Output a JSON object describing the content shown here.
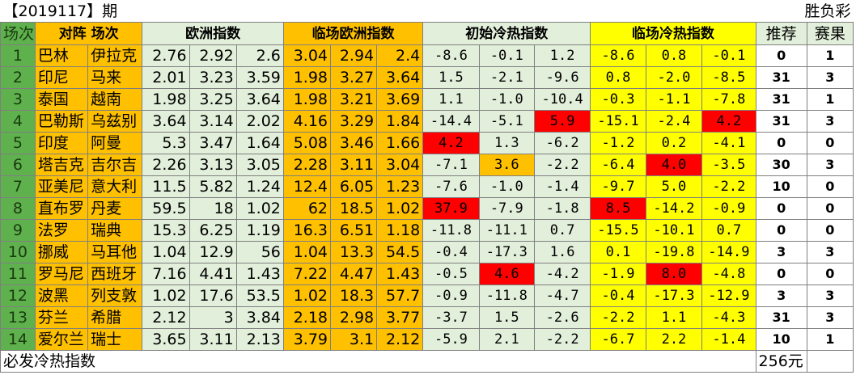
{
  "period": "【2019117】期",
  "game_type": "胜负彩",
  "headers": {
    "no": "场次",
    "match": "对阵 场次",
    "euro": "欧洲指数",
    "live_euro": "临场欧洲指数",
    "init_heat": "初始冷热指数",
    "live_heat": "临场冷热指数",
    "recommend": "推荐",
    "result": "赛果"
  },
  "rows": [
    {
      "no": "1",
      "home": "巴林",
      "away": "伊拉克",
      "euro": [
        "2.76",
        "2.92",
        "2.6"
      ],
      "live": [
        "3.04",
        "2.94",
        "2.4"
      ],
      "init": [
        "-8.6",
        "-0.1",
        "1.2"
      ],
      "lheat": [
        "-8.6",
        "0.8",
        "-0.1"
      ],
      "rec": "0",
      "res": "1",
      "hl": {}
    },
    {
      "no": "2",
      "home": "印尼",
      "away": "马来",
      "euro": [
        "2.01",
        "3.23",
        "3.59"
      ],
      "live": [
        "1.98",
        "3.27",
        "3.64"
      ],
      "init": [
        "1.5",
        "-2.1",
        "-9.6"
      ],
      "lheat": [
        "0.8",
        "-2.0",
        "-8.5"
      ],
      "rec": "31",
      "res": "3",
      "hl": {}
    },
    {
      "no": "3",
      "home": "泰国",
      "away": "越南",
      "euro": [
        "1.98",
        "3.25",
        "3.64"
      ],
      "live": [
        "1.98",
        "3.21",
        "3.69"
      ],
      "init": [
        "1.1",
        "-1.0",
        "-10.4"
      ],
      "lheat": [
        "-0.3",
        "-1.1",
        "-7.8"
      ],
      "rec": "31",
      "res": "1",
      "hl": {}
    },
    {
      "no": "4",
      "home": "巴勒斯",
      "away": "乌兹别",
      "euro": [
        "3.64",
        "3.14",
        "2.02"
      ],
      "live": [
        "4.16",
        "3.29",
        "1.84"
      ],
      "init": [
        "-14.4",
        "-5.1",
        "5.9"
      ],
      "lheat": [
        "-15.1",
        "-2.4",
        "4.2"
      ],
      "rec": "31",
      "res": "3",
      "hl": {
        "init": {
          "2": "red"
        },
        "lheat": {
          "2": "red"
        }
      }
    },
    {
      "no": "5",
      "home": "印度",
      "away": "阿曼",
      "euro": [
        "5.3",
        "3.47",
        "1.64"
      ],
      "live": [
        "5.08",
        "3.46",
        "1.66"
      ],
      "init": [
        "4.2",
        "1.3",
        "-6.2"
      ],
      "lheat": [
        "-1.2",
        "0.2",
        "-4.1"
      ],
      "rec": "0",
      "res": "0",
      "hl": {
        "init": {
          "0": "red"
        }
      }
    },
    {
      "no": "6",
      "home": "塔吉克",
      "away": "吉尔吉",
      "euro": [
        "2.26",
        "3.13",
        "3.05"
      ],
      "live": [
        "2.28",
        "3.11",
        "3.04"
      ],
      "init": [
        "-7.1",
        "3.6",
        "-2.2"
      ],
      "lheat": [
        "-6.4",
        "4.0",
        "-3.5"
      ],
      "rec": "30",
      "res": "3",
      "hl": {
        "init": {
          "1": "orange"
        },
        "lheat": {
          "1": "red"
        }
      }
    },
    {
      "no": "7",
      "home": "亚美尼",
      "away": "意大利",
      "euro": [
        "11.5",
        "5.82",
        "1.24"
      ],
      "live": [
        "12.4",
        "6.05",
        "1.23"
      ],
      "init": [
        "-7.6",
        "-1.0",
        "-1.4"
      ],
      "lheat": [
        "-9.7",
        "5.0",
        "-2.2"
      ],
      "rec": "10",
      "res": "0",
      "hl": {}
    },
    {
      "no": "8",
      "home": "直布罗",
      "away": "丹麦",
      "euro": [
        "59.5",
        "18",
        "1.02"
      ],
      "live": [
        "62",
        "18.5",
        "1.02"
      ],
      "init": [
        "37.9",
        "-7.9",
        "-1.8"
      ],
      "lheat": [
        "8.5",
        "-14.2",
        "-0.9"
      ],
      "rec": "0",
      "res": "0",
      "hl": {
        "init": {
          "0": "red"
        },
        "lheat": {
          "0": "red"
        }
      }
    },
    {
      "no": "9",
      "home": "法罗",
      "away": "瑞典",
      "euro": [
        "15.3",
        "6.25",
        "1.19"
      ],
      "live": [
        "16.3",
        "6.51",
        "1.18"
      ],
      "init": [
        "-11.8",
        "-11.1",
        "0.7"
      ],
      "lheat": [
        "-15.5",
        "-10.1",
        "0.7"
      ],
      "rec": "0",
      "res": "0",
      "hl": {}
    },
    {
      "no": "10",
      "home": "挪威",
      "away": "马耳他",
      "euro": [
        "1.04",
        "12.9",
        "56"
      ],
      "live": [
        "1.04",
        "13.3",
        "54.5"
      ],
      "init": [
        "-0.4",
        "-17.3",
        "1.6"
      ],
      "lheat": [
        "0.1",
        "-19.8",
        "-14.9"
      ],
      "rec": "3",
      "res": "3",
      "hl": {}
    },
    {
      "no": "11",
      "home": "罗马尼",
      "away": "西班牙",
      "euro": [
        "7.16",
        "4.41",
        "1.43"
      ],
      "live": [
        "7.22",
        "4.47",
        "1.43"
      ],
      "init": [
        "-0.5",
        "4.6",
        "-4.2"
      ],
      "lheat": [
        "-1.9",
        "8.0",
        "-4.8"
      ],
      "rec": "0",
      "res": "0",
      "hl": {
        "init": {
          "1": "red"
        },
        "lheat": {
          "1": "red"
        }
      }
    },
    {
      "no": "12",
      "home": "波黑",
      "away": "列支敦",
      "euro": [
        "1.02",
        "17.6",
        "53.5"
      ],
      "live": [
        "1.02",
        "18.3",
        "57.7"
      ],
      "init": [
        "-0.9",
        "-11.8",
        "-4.7"
      ],
      "lheat": [
        "-0.4",
        "-17.3",
        "-12.9"
      ],
      "rec": "3",
      "res": "3",
      "hl": {}
    },
    {
      "no": "13",
      "home": "芬兰",
      "away": "希腊",
      "euro": [
        "2.12",
        "3",
        "3.84"
      ],
      "live": [
        "2.18",
        "2.98",
        "3.77"
      ],
      "init": [
        "-3.7",
        "1.5",
        "-2.6"
      ],
      "lheat": [
        "-2.2",
        "1.1",
        "-4.3"
      ],
      "rec": "31",
      "res": "3",
      "hl": {}
    },
    {
      "no": "14",
      "home": "爱尔兰",
      "away": "瑞士",
      "euro": [
        "3.65",
        "3.11",
        "2.13"
      ],
      "live": [
        "3.79",
        "3.1",
        "2.12"
      ],
      "init": [
        "-5.9",
        "2.1",
        "-2.2"
      ],
      "lheat": [
        "-6.7",
        "2.2",
        "-1.4"
      ],
      "rec": "10",
      "res": "1",
      "hl": {}
    }
  ],
  "footer": {
    "label": "必发冷热指数",
    "price": "256元"
  },
  "colors": {
    "green": "#5fb14e",
    "orange": "#ffc000",
    "light_green": "#e2efda",
    "yellow": "#ffff00",
    "red": "#ff0000"
  }
}
